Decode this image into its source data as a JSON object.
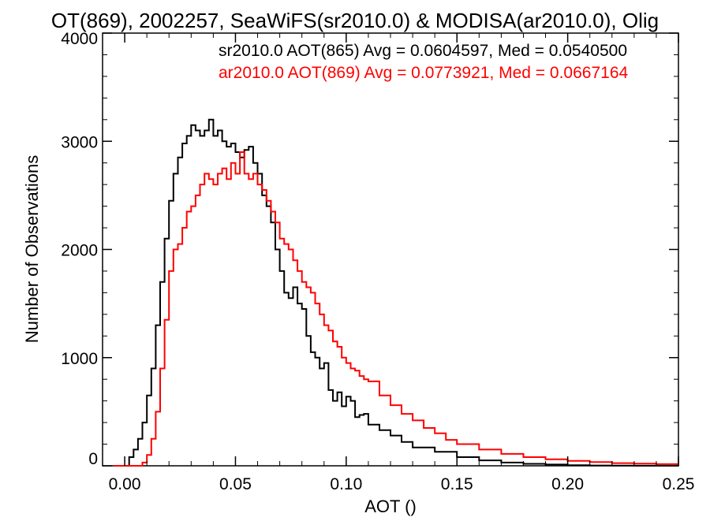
{
  "chart_data": {
    "type": "line",
    "title": "OT(869), 2002257, SeaWiFS(sr2010.0) & MODISA(ar2010.0), Olig",
    "xlabel": "AOT ()",
    "ylabel": "Number of Observations",
    "xlim": [
      -0.01,
      0.25
    ],
    "ylim": [
      0,
      4000
    ],
    "xticks": [
      "0.00",
      "0.05",
      "0.10",
      "0.15",
      "0.20",
      "0.25"
    ],
    "yticks": [
      "0",
      "1000",
      "2000",
      "3000",
      "4000"
    ],
    "grid": false,
    "legend_placement": "top-right",
    "series": [
      {
        "name": "sr2010.0 AOT(865) Avg = 0.0604597, Med = 0.0540500",
        "color": "#000000",
        "x": [
          -0.005,
          0.0,
          0.002,
          0.004,
          0.006,
          0.008,
          0.01,
          0.012,
          0.014,
          0.016,
          0.018,
          0.02,
          0.022,
          0.024,
          0.026,
          0.028,
          0.03,
          0.032,
          0.034,
          0.036,
          0.038,
          0.04,
          0.042,
          0.044,
          0.046,
          0.048,
          0.05,
          0.052,
          0.054,
          0.056,
          0.058,
          0.06,
          0.062,
          0.064,
          0.066,
          0.068,
          0.07,
          0.072,
          0.074,
          0.076,
          0.078,
          0.08,
          0.082,
          0.084,
          0.086,
          0.088,
          0.09,
          0.092,
          0.094,
          0.096,
          0.098,
          0.1,
          0.102,
          0.104,
          0.106,
          0.108,
          0.11,
          0.115,
          0.12,
          0.125,
          0.13,
          0.14,
          0.15,
          0.16,
          0.17,
          0.18,
          0.19,
          0.2,
          0.21,
          0.22,
          0.23,
          0.24,
          0.25
        ],
        "values": [
          0,
          0,
          80,
          150,
          250,
          400,
          650,
          900,
          1300,
          1700,
          2100,
          2450,
          2700,
          2850,
          2980,
          3050,
          3150,
          3100,
          3050,
          3100,
          3200,
          3050,
          3100,
          3000,
          2950,
          2980,
          2900,
          2850,
          2920,
          2950,
          2800,
          2700,
          2500,
          2400,
          2250,
          2000,
          1800,
          1600,
          1550,
          1650,
          1500,
          1450,
          1200,
          1050,
          1000,
          900,
          950,
          700,
          600,
          680,
          550,
          640,
          600,
          450,
          470,
          480,
          380,
          330,
          280,
          220,
          170,
          130,
          80,
          50,
          30,
          18,
          12,
          6,
          3,
          2,
          1,
          1,
          0
        ]
      },
      {
        "name": "ar2010.0 AOT(869) Avg = 0.0773921, Med = 0.0667164",
        "color": "#ff0000",
        "x": [
          -0.005,
          0.0,
          0.005,
          0.008,
          0.01,
          0.012,
          0.014,
          0.016,
          0.018,
          0.02,
          0.022,
          0.024,
          0.026,
          0.028,
          0.03,
          0.032,
          0.034,
          0.036,
          0.038,
          0.04,
          0.042,
          0.044,
          0.046,
          0.048,
          0.05,
          0.052,
          0.054,
          0.056,
          0.058,
          0.06,
          0.062,
          0.064,
          0.066,
          0.068,
          0.07,
          0.072,
          0.074,
          0.076,
          0.078,
          0.08,
          0.082,
          0.084,
          0.086,
          0.088,
          0.09,
          0.092,
          0.094,
          0.096,
          0.098,
          0.1,
          0.102,
          0.104,
          0.106,
          0.108,
          0.11,
          0.115,
          0.12,
          0.125,
          0.13,
          0.135,
          0.14,
          0.145,
          0.15,
          0.16,
          0.17,
          0.18,
          0.19,
          0.2,
          0.21,
          0.22,
          0.23,
          0.24,
          0.25
        ],
        "values": [
          0,
          0,
          0,
          30,
          100,
          250,
          500,
          900,
          1350,
          1800,
          2000,
          2050,
          2200,
          2350,
          2400,
          2500,
          2600,
          2700,
          2650,
          2600,
          2700,
          2750,
          2650,
          2800,
          2700,
          2900,
          2700,
          2650,
          2700,
          2600,
          2550,
          2450,
          2350,
          2250,
          2100,
          2050,
          2000,
          1900,
          1800,
          1700,
          1650,
          1600,
          1500,
          1400,
          1300,
          1250,
          1150,
          1100,
          1000,
          950,
          900,
          880,
          830,
          800,
          780,
          650,
          560,
          480,
          420,
          350,
          300,
          240,
          200,
          150,
          110,
          80,
          60,
          45,
          35,
          25,
          20,
          15,
          10
        ]
      }
    ]
  }
}
